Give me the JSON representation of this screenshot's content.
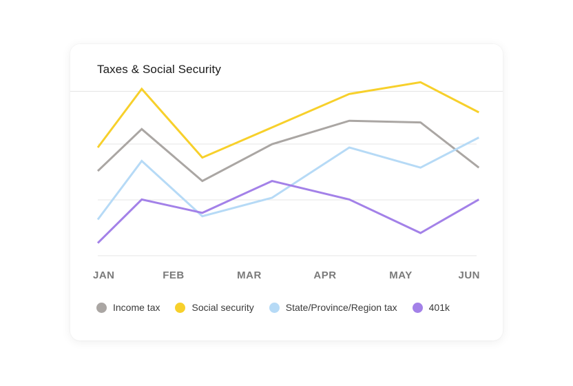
{
  "card": {
    "title": "Taxes & Social Security"
  },
  "chart_data": {
    "type": "line",
    "title": "Taxes & Social Security",
    "categories": [
      "JAN",
      "FEB",
      "MAR",
      "APR",
      "MAY",
      "JUN"
    ],
    "ylim": [
      0,
      100
    ],
    "grid": true,
    "legend_position": "bottom",
    "series": [
      {
        "name": "Income tax",
        "color": "#aaa6a3",
        "x": [
          0,
          0.58,
          1.38,
          2.3,
          3.32,
          4.26,
          5.03
        ],
        "values": [
          51,
          76,
          45,
          67,
          81,
          80,
          53
        ]
      },
      {
        "name": "Social security",
        "color": "#f7d02b",
        "x": [
          0,
          0.58,
          1.38,
          2.3,
          3.32,
          4.26,
          5.03
        ],
        "values": [
          65,
          100,
          59,
          77,
          97,
          104,
          86
        ]
      },
      {
        "name": "State/Province/Region tax",
        "color": "#b6daf6",
        "x": [
          0,
          0.58,
          1.38,
          2.3,
          3.32,
          4.26,
          5.03
        ],
        "values": [
          22,
          57,
          24,
          35,
          65,
          53,
          71
        ]
      },
      {
        "name": "401k",
        "color": "#a381e8",
        "x": [
          0,
          0.58,
          1.38,
          2.3,
          3.32,
          4.26,
          5.03
        ],
        "values": [
          8,
          34,
          26,
          45,
          34,
          14,
          34
        ]
      }
    ]
  }
}
